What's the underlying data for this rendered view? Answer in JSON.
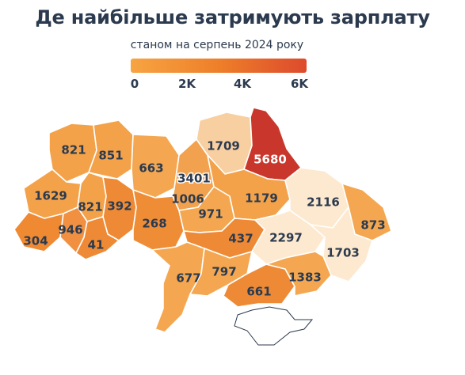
{
  "title": "Де найбільше затримують зарплату",
  "subtitle": "станом на серпень 2024 року",
  "legend": {
    "colors": [
      "#f7a442",
      "#ee7f2a",
      "#dd4a2c"
    ],
    "labels": [
      "0",
      "2K",
      "4K",
      "6K"
    ]
  },
  "colors": {
    "text": "#2b3a4e",
    "low": "#fde9cf",
    "mid": "#f4a348",
    "high": "#c9372c"
  },
  "regions": [
    {
      "id": "volyn",
      "value": "821",
      "color": "#f3a24a"
    },
    {
      "id": "rivne",
      "value": "851",
      "color": "#f3a24a"
    },
    {
      "id": "zhytomyr",
      "value": "663",
      "color": "#f4a750"
    },
    {
      "id": "kyiv-oblast",
      "value": "1006",
      "color": "#f2a24e"
    },
    {
      "id": "kyiv-city",
      "value": "3401",
      "color": "#e8842f"
    },
    {
      "id": "chernihiv",
      "value": "1709",
      "color": "#f8cfa0"
    },
    {
      "id": "sumy",
      "value": "5680",
      "color": "#c9372c"
    },
    {
      "id": "lviv",
      "value": "1629",
      "color": "#f3a24a"
    },
    {
      "id": "ternopil",
      "value": "821",
      "color": "#f3a24a"
    },
    {
      "id": "khmelnytskyi",
      "value": "392",
      "color": "#ee8a35"
    },
    {
      "id": "vinnytsia",
      "value": "268",
      "color": "#ef8d37"
    },
    {
      "id": "cherkasy",
      "value": "971",
      "color": "#f4a750"
    },
    {
      "id": "poltava",
      "value": "1179",
      "color": "#f3a24a"
    },
    {
      "id": "kharkiv",
      "value": "2116",
      "color": "#fde9cf"
    },
    {
      "id": "luhansk",
      "value": "873",
      "color": "#f4a750"
    },
    {
      "id": "zakarpattia",
      "value": "304",
      "color": "#ef8a33"
    },
    {
      "id": "ivano-frankivsk",
      "value": "946",
      "color": "#f09040"
    },
    {
      "id": "chernivtsi",
      "value": "41",
      "color": "#ee8a35"
    },
    {
      "id": "kirovohrad",
      "value": "437",
      "color": "#ee8a35"
    },
    {
      "id": "dnipropetrovsk",
      "value": "2297",
      "color": "#fde9cf"
    },
    {
      "id": "donetsk",
      "value": "1703",
      "color": "#fde9cf"
    },
    {
      "id": "odesa",
      "value": "677",
      "color": "#f4a750"
    },
    {
      "id": "mykolaiv",
      "value": "797",
      "color": "#f4a750"
    },
    {
      "id": "kherson",
      "value": "661",
      "color": "#ee8a35"
    },
    {
      "id": "zaporizhzhia",
      "value": "1383",
      "color": "#f4a750"
    }
  ]
}
